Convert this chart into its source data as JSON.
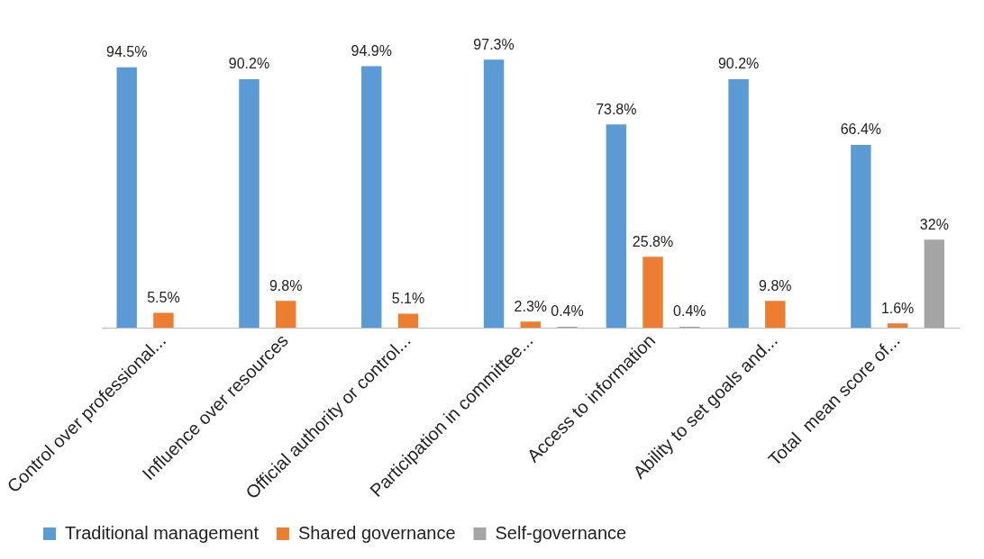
{
  "chart_data": {
    "type": "bar",
    "categories": [
      "Control over professional...",
      "Influence over resources",
      "Official authority or control...",
      "Participation in committee...",
      "Access to information",
      "Ability to set goals and...",
      "Total  mean score of..."
    ],
    "series": [
      {
        "name": "Traditional management",
        "color": "#5b9bd5",
        "values": [
          94.5,
          90.2,
          94.9,
          97.3,
          73.8,
          90.2,
          66.4
        ],
        "value_labels": [
          "94.5%",
          "90.2%",
          "94.9%",
          "97.3%",
          "73.8%",
          "90.2%",
          "66.4%"
        ]
      },
      {
        "name": "Shared governance",
        "color": "#ed7d31",
        "values": [
          5.5,
          9.8,
          5.1,
          2.3,
          25.8,
          9.8,
          1.6
        ],
        "value_labels": [
          "5.5%",
          "9.8%",
          "5.1%",
          "2.3%",
          "25.8%",
          "9.8%",
          "1.6%"
        ]
      },
      {
        "name": "Self-governance",
        "color": "#a5a5a5",
        "values": [
          null,
          null,
          null,
          0.4,
          0.4,
          null,
          32
        ],
        "value_labels": [
          null,
          null,
          null,
          "0.4%",
          "0.4%",
          null,
          "32%"
        ]
      }
    ],
    "legend": "bottom",
    "grid": false,
    "tick_labels": "x"
  }
}
